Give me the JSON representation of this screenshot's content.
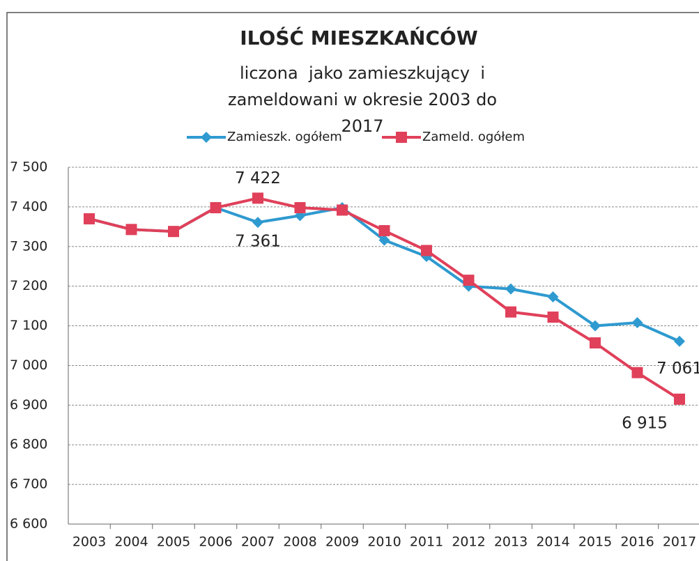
{
  "chart_data": {
    "type": "line",
    "title": "ILOŚĆ MIESZKAŃCÓW",
    "subtitle": "liczona  jako zamieszkujący  i zameldowani w okresie 2003 do 2017",
    "categories": [
      "2003",
      "2004",
      "2005",
      "2006",
      "2007",
      "2008",
      "2009",
      "2010",
      "2011",
      "2012",
      "2013",
      "2014",
      "2015",
      "2016",
      "2017"
    ],
    "series": [
      {
        "name": "Zamieszk. ogółem",
        "color": "#2e9ad0",
        "marker": "diamond",
        "values": [
          7370,
          7343,
          7338,
          7398,
          7361,
          7378,
          7398,
          7316,
          7275,
          7200,
          7193,
          7173,
          7100,
          7108,
          7061
        ],
        "value_labels": [
          null,
          null,
          null,
          null,
          "7 361",
          null,
          null,
          null,
          null,
          null,
          null,
          null,
          null,
          null,
          "7 061"
        ]
      },
      {
        "name": "Zameld. ogółem",
        "color": "#e0405a",
        "marker": "square",
        "values": [
          7370,
          7343,
          7338,
          7398,
          7422,
          7398,
          7392,
          7340,
          7290,
          7215,
          7135,
          7122,
          7057,
          6982,
          6915
        ],
        "value_labels": [
          null,
          null,
          null,
          null,
          "7 422",
          null,
          null,
          null,
          null,
          null,
          null,
          null,
          null,
          null,
          "6 915"
        ]
      }
    ],
    "ylim": [
      6600,
      7500
    ],
    "yticks": [
      {
        "value": 6600,
        "label": "6 600"
      },
      {
        "value": 6700,
        "label": "6 700"
      },
      {
        "value": 6800,
        "label": "6 800"
      },
      {
        "value": 6900,
        "label": "6 900"
      },
      {
        "value": 7000,
        "label": "7 000"
      },
      {
        "value": 7100,
        "label": "7 100"
      },
      {
        "value": 7200,
        "label": "7 200"
      },
      {
        "value": 7300,
        "label": "7 300"
      },
      {
        "value": 7400,
        "label": "7 400"
      },
      {
        "value": 7500,
        "label": "7 500"
      }
    ],
    "grid": true,
    "legend": "top"
  }
}
